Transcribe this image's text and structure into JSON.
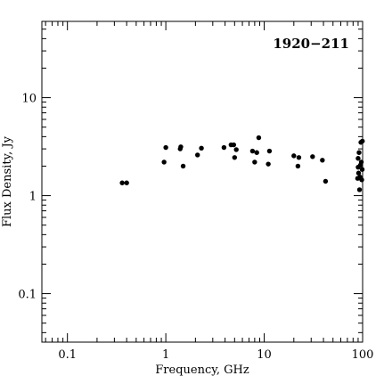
{
  "chart_data": {
    "type": "scatter",
    "title": "1920−211",
    "xlabel": "Frequency, GHz",
    "ylabel": "Flux Density, Jy",
    "x_scale": "log",
    "y_scale": "log",
    "xlim": [
      0.055,
      100
    ],
    "ylim": [
      0.032,
      60
    ],
    "x_ticks": [
      {
        "value": 0.1,
        "label": "0.1"
      },
      {
        "value": 1,
        "label": "1"
      },
      {
        "value": 10,
        "label": "10"
      },
      {
        "value": 100,
        "label": "100"
      }
    ],
    "y_ticks": [
      {
        "value": 0.1,
        "label": "0.1"
      },
      {
        "value": 1,
        "label": "1"
      },
      {
        "value": 10,
        "label": "10"
      }
    ],
    "grid": false,
    "legend": "none",
    "marker_color": "#000000",
    "points": [
      {
        "x": 0.36,
        "y": 1.35
      },
      {
        "x": 0.4,
        "y": 1.35
      },
      {
        "x": 0.96,
        "y": 2.2
      },
      {
        "x": 1.0,
        "y": 3.1
      },
      {
        "x": 1.4,
        "y": 3.0
      },
      {
        "x": 1.42,
        "y": 3.15
      },
      {
        "x": 1.5,
        "y": 2.0
      },
      {
        "x": 2.1,
        "y": 2.6
      },
      {
        "x": 2.3,
        "y": 3.05
      },
      {
        "x": 3.9,
        "y": 3.1
      },
      {
        "x": 4.6,
        "y": 3.3
      },
      {
        "x": 4.9,
        "y": 3.3
      },
      {
        "x": 5.0,
        "y": 2.45
      },
      {
        "x": 5.2,
        "y": 2.95
      },
      {
        "x": 7.6,
        "y": 2.85
      },
      {
        "x": 8.0,
        "y": 2.2
      },
      {
        "x": 8.4,
        "y": 2.75
      },
      {
        "x": 8.8,
        "y": 3.9
      },
      {
        "x": 11.0,
        "y": 2.1
      },
      {
        "x": 11.3,
        "y": 2.85
      },
      {
        "x": 20.0,
        "y": 2.55
      },
      {
        "x": 22.0,
        "y": 2.0
      },
      {
        "x": 22.5,
        "y": 2.45
      },
      {
        "x": 31.0,
        "y": 2.5
      },
      {
        "x": 39.0,
        "y": 2.3
      },
      {
        "x": 42.0,
        "y": 1.4
      },
      {
        "x": 89.0,
        "y": 1.5
      },
      {
        "x": 90.0,
        "y": 1.95
      },
      {
        "x": 90.0,
        "y": 2.4
      },
      {
        "x": 91.0,
        "y": 1.7
      },
      {
        "x": 92.0,
        "y": 2.75
      },
      {
        "x": 93.0,
        "y": 1.15
      },
      {
        "x": 94.0,
        "y": 1.55
      },
      {
        "x": 95.0,
        "y": 2.05
      },
      {
        "x": 96.0,
        "y": 3.5
      },
      {
        "x": 97.0,
        "y": 2.2
      },
      {
        "x": 98.0,
        "y": 1.45
      },
      {
        "x": 99.0,
        "y": 1.85
      },
      {
        "x": 99.5,
        "y": 3.6
      }
    ]
  }
}
